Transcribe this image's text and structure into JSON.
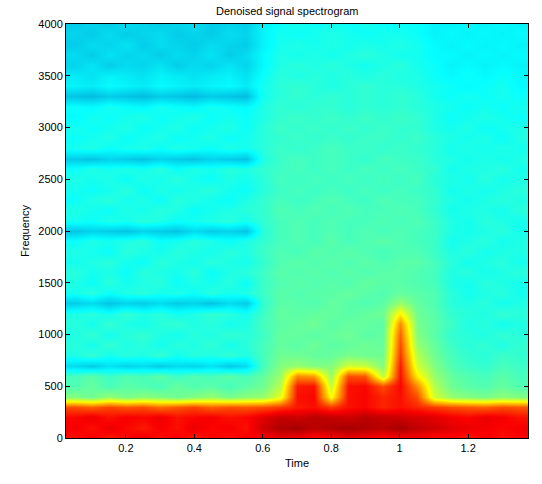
{
  "chart_data": {
    "type": "heatmap",
    "title": "Denoised signal spectrogram",
    "x_label": "Time",
    "y_label": "Frequency",
    "color": "jet",
    "xlim": [
      0.025,
      1.375
    ],
    "xticks": [
      0.2,
      0.4,
      0.6,
      0.8,
      1,
      1.2
    ],
    "ylim": [
      0,
      4000
    ],
    "yticks": [
      0,
      500,
      1000,
      1500,
      2000,
      2500,
      3000,
      3500,
      4000
    ],
    "zlim": [
      0,
      100
    ],
    "x": [
      0.05,
      0.1,
      0.15,
      0.2,
      0.25,
      0.3,
      0.35,
      0.4,
      0.45,
      0.5,
      0.55,
      0.6,
      0.65,
      0.7,
      0.75,
      0.8,
      0.85,
      0.9,
      0.95,
      1,
      1.05,
      1.1,
      1.15,
      1.2,
      1.25,
      1.3,
      1.35
    ],
    "y": [
      0,
      100,
      200,
      300,
      400,
      500,
      600,
      700,
      800,
      900,
      1000,
      1100,
      1200,
      1300,
      1400,
      1500,
      1600,
      1700,
      1800,
      1900,
      2000,
      2100,
      2200,
      2300,
      2400,
      2500,
      2600,
      2700,
      2800,
      2900,
      3000,
      3100,
      3200,
      3300,
      3400,
      3500,
      3600,
      3700,
      3800,
      3900,
      4000
    ],
    "z": [
      [
        86,
        88,
        85,
        87,
        89,
        86,
        88,
        85,
        87,
        86,
        88,
        87,
        89,
        88,
        86,
        87,
        89,
        88,
        86,
        87,
        88,
        86,
        87,
        85,
        88,
        86,
        87
      ],
      [
        88,
        86,
        89,
        87,
        85,
        88,
        86,
        89,
        87,
        88,
        86,
        92,
        95,
        96,
        94,
        95,
        96,
        95,
        94,
        96,
        93,
        92,
        90,
        89,
        88,
        87,
        88
      ],
      [
        87,
        89,
        86,
        88,
        87,
        89,
        86,
        87,
        88,
        86,
        87,
        90,
        93,
        92,
        94,
        93,
        92,
        94,
        93,
        92,
        91,
        90,
        88,
        87,
        89,
        88,
        86
      ],
      [
        80,
        78,
        81,
        79,
        80,
        77,
        79,
        81,
        78,
        80,
        79,
        80,
        82,
        85,
        86,
        82,
        86,
        87,
        84,
        86,
        84,
        82,
        80,
        79,
        78,
        80,
        79
      ],
      [
        50,
        48,
        52,
        49,
        51,
        50,
        48,
        50,
        52,
        49,
        51,
        52,
        60,
        86,
        87,
        62,
        86,
        87,
        84,
        86,
        80,
        58,
        52,
        50,
        49,
        51,
        50
      ],
      [
        45,
        47,
        44,
        46,
        45,
        44,
        47,
        45,
        46,
        44,
        46,
        48,
        55,
        85,
        86,
        56,
        86,
        87,
        80,
        87,
        74,
        55,
        48,
        46,
        45,
        47,
        45
      ],
      [
        44,
        46,
        43,
        45,
        44,
        46,
        43,
        45,
        44,
        46,
        44,
        47,
        52,
        74,
        72,
        52,
        80,
        79,
        55,
        86,
        64,
        52,
        47,
        45,
        44,
        46,
        44
      ],
      [
        33,
        31,
        34,
        32,
        33,
        31,
        33,
        32,
        34,
        31,
        33,
        44,
        50,
        52,
        50,
        50,
        58,
        57,
        50,
        85,
        58,
        50,
        45,
        43,
        42,
        44,
        43
      ],
      [
        40,
        42,
        39,
        41,
        40,
        42,
        39,
        41,
        40,
        42,
        40,
        44,
        48,
        48,
        47,
        47,
        49,
        48,
        48,
        82,
        55,
        48,
        44,
        42,
        41,
        43,
        42
      ],
      [
        41,
        39,
        42,
        40,
        41,
        39,
        41,
        40,
        42,
        39,
        41,
        44,
        47,
        46,
        48,
        46,
        47,
        48,
        47,
        80,
        52,
        47,
        43,
        41,
        42,
        40,
        42
      ],
      [
        40,
        42,
        39,
        41,
        42,
        40,
        39,
        41,
        40,
        42,
        41,
        43,
        47,
        47,
        46,
        47,
        48,
        46,
        47,
        78,
        50,
        46,
        42,
        41,
        40,
        42,
        41
      ],
      [
        41,
        39,
        42,
        40,
        39,
        41,
        42,
        40,
        41,
        39,
        40,
        44,
        46,
        47,
        48,
        46,
        47,
        47,
        46,
        74,
        49,
        46,
        43,
        40,
        41,
        39,
        40
      ],
      [
        40,
        41,
        39,
        42,
        40,
        41,
        39,
        40,
        42,
        41,
        39,
        43,
        47,
        46,
        47,
        47,
        46,
        47,
        48,
        64,
        48,
        46,
        42,
        41,
        40,
        42,
        41
      ],
      [
        31,
        33,
        30,
        32,
        31,
        33,
        31,
        32,
        30,
        33,
        31,
        42,
        46,
        46,
        45,
        47,
        46,
        45,
        46,
        52,
        47,
        45,
        41,
        40,
        41,
        39,
        40
      ],
      [
        39,
        41,
        38,
        40,
        41,
        39,
        40,
        38,
        41,
        39,
        40,
        43,
        46,
        45,
        46,
        46,
        47,
        46,
        45,
        47,
        46,
        45,
        41,
        39,
        40,
        41,
        39
      ],
      [
        40,
        38,
        41,
        39,
        40,
        41,
        38,
        40,
        39,
        41,
        38,
        43,
        45,
        46,
        45,
        46,
        45,
        47,
        46,
        46,
        45,
        44,
        40,
        39,
        41,
        40,
        39
      ],
      [
        41,
        39,
        40,
        38,
        41,
        40,
        39,
        41,
        38,
        40,
        41,
        43,
        46,
        45,
        46,
        45,
        46,
        45,
        46,
        46,
        45,
        44,
        40,
        41,
        39,
        40,
        41
      ],
      [
        39,
        40,
        41,
        39,
        38,
        41,
        40,
        39,
        41,
        40,
        39,
        42,
        45,
        46,
        45,
        46,
        45,
        46,
        45,
        46,
        46,
        44,
        41,
        39,
        40,
        41,
        39
      ],
      [
        40,
        39,
        38,
        41,
        40,
        39,
        41,
        40,
        39,
        41,
        40,
        43,
        45,
        44,
        46,
        45,
        46,
        45,
        44,
        45,
        45,
        43,
        40,
        41,
        39,
        40,
        40
      ],
      [
        38,
        40,
        39,
        40,
        41,
        38,
        39,
        41,
        40,
        38,
        40,
        42,
        44,
        45,
        44,
        46,
        44,
        45,
        46,
        45,
        44,
        43,
        39,
        40,
        41,
        39,
        40
      ],
      [
        30,
        32,
        31,
        30,
        32,
        31,
        30,
        33,
        31,
        32,
        30,
        41,
        44,
        45,
        44,
        45,
        44,
        45,
        44,
        45,
        44,
        43,
        40,
        39,
        40,
        41,
        39
      ],
      [
        39,
        38,
        40,
        39,
        41,
        40,
        38,
        39,
        40,
        41,
        39,
        42,
        44,
        45,
        44,
        45,
        44,
        44,
        45,
        44,
        45,
        43,
        40,
        39,
        41,
        40,
        39
      ],
      [
        40,
        39,
        38,
        40,
        39,
        41,
        40,
        38,
        39,
        40,
        41,
        42,
        45,
        44,
        45,
        44,
        45,
        44,
        44,
        45,
        44,
        42,
        39,
        40,
        40,
        39,
        41
      ],
      [
        38,
        40,
        41,
        39,
        40,
        38,
        41,
        40,
        39,
        38,
        40,
        42,
        44,
        43,
        44,
        45,
        44,
        43,
        45,
        44,
        44,
        42,
        40,
        39,
        40,
        41,
        40
      ],
      [
        39,
        38,
        39,
        41,
        38,
        40,
        39,
        40,
        41,
        39,
        38,
        41,
        43,
        44,
        43,
        44,
        43,
        44,
        43,
        44,
        43,
        42,
        39,
        40,
        39,
        40,
        41
      ],
      [
        40,
        39,
        40,
        38,
        40,
        39,
        41,
        39,
        38,
        40,
        39,
        41,
        44,
        43,
        44,
        43,
        44,
        43,
        44,
        43,
        44,
        41,
        40,
        39,
        41,
        39,
        40
      ],
      [
        38,
        40,
        39,
        40,
        39,
        41,
        38,
        40,
        39,
        41,
        40,
        42,
        43,
        44,
        43,
        44,
        43,
        44,
        43,
        44,
        43,
        42,
        39,
        40,
        40,
        41,
        39
      ],
      [
        31,
        30,
        32,
        31,
        30,
        32,
        31,
        30,
        32,
        31,
        30,
        40,
        43,
        44,
        43,
        44,
        43,
        42,
        44,
        43,
        43,
        41,
        40,
        39,
        40,
        39,
        40
      ],
      [
        39,
        40,
        38,
        39,
        40,
        38,
        40,
        39,
        38,
        40,
        39,
        41,
        43,
        42,
        43,
        44,
        43,
        43,
        42,
        43,
        42,
        41,
        39,
        40,
        39,
        40,
        39
      ],
      [
        38,
        39,
        40,
        38,
        39,
        40,
        38,
        39,
        40,
        38,
        39,
        41,
        42,
        43,
        42,
        43,
        42,
        43,
        43,
        42,
        43,
        41,
        40,
        39,
        40,
        38,
        40
      ],
      [
        39,
        38,
        39,
        40,
        38,
        39,
        40,
        38,
        39,
        40,
        38,
        41,
        43,
        42,
        43,
        42,
        43,
        42,
        43,
        42,
        42,
        40,
        39,
        40,
        38,
        39,
        40
      ],
      [
        37,
        39,
        38,
        39,
        40,
        38,
        39,
        40,
        38,
        39,
        38,
        40,
        42,
        43,
        42,
        43,
        42,
        43,
        42,
        43,
        42,
        40,
        38,
        39,
        40,
        39,
        38
      ],
      [
        38,
        37,
        39,
        38,
        37,
        39,
        38,
        37,
        39,
        38,
        37,
        40,
        42,
        41,
        42,
        42,
        41,
        42,
        41,
        42,
        41,
        40,
        39,
        38,
        39,
        38,
        39
      ],
      [
        30,
        29,
        31,
        30,
        29,
        31,
        30,
        29,
        31,
        30,
        29,
        39,
        41,
        42,
        41,
        42,
        41,
        42,
        41,
        42,
        41,
        39,
        38,
        39,
        38,
        39,
        38
      ],
      [
        36,
        35,
        37,
        36,
        35,
        37,
        36,
        35,
        36,
        37,
        35,
        39,
        41,
        42,
        41,
        40,
        41,
        42,
        41,
        41,
        40,
        39,
        38,
        37,
        38,
        39,
        37
      ],
      [
        35,
        34,
        36,
        35,
        34,
        36,
        35,
        34,
        35,
        36,
        34,
        38,
        41,
        40,
        41,
        40,
        41,
        40,
        41,
        40,
        40,
        38,
        37,
        38,
        37,
        38,
        37
      ],
      [
        32,
        34,
        31,
        33,
        32,
        34,
        31,
        33,
        32,
        34,
        32,
        37,
        40,
        41,
        40,
        41,
        40,
        39,
        40,
        41,
        39,
        38,
        36,
        37,
        36,
        37,
        36
      ],
      [
        33,
        31,
        34,
        32,
        33,
        31,
        33,
        32,
        34,
        31,
        33,
        37,
        40,
        39,
        40,
        39,
        40,
        41,
        40,
        39,
        39,
        37,
        37,
        36,
        37,
        36,
        37
      ],
      [
        31,
        33,
        32,
        34,
        31,
        33,
        32,
        31,
        33,
        32,
        31,
        36,
        39,
        40,
        39,
        40,
        39,
        40,
        39,
        40,
        39,
        37,
        36,
        37,
        36,
        37,
        36
      ],
      [
        32,
        31,
        33,
        31,
        32,
        33,
        31,
        32,
        31,
        33,
        32,
        36,
        39,
        38,
        39,
        40,
        39,
        38,
        39,
        39,
        38,
        36,
        37,
        36,
        37,
        36,
        37
      ],
      [
        31,
        32,
        31,
        33,
        32,
        31,
        32,
        33,
        31,
        32,
        31,
        36,
        38,
        39,
        38,
        39,
        38,
        39,
        38,
        38,
        38,
        36,
        36,
        37,
        36,
        37,
        36
      ]
    ]
  }
}
